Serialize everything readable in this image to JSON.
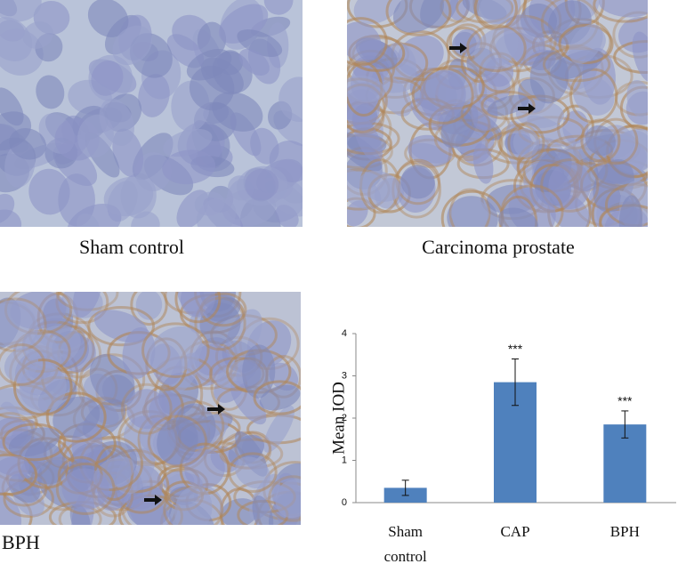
{
  "panels": [
    {
      "label": "Sham control"
    },
    {
      "label": "Carcinoma prostate"
    },
    {
      "label": "BPH"
    }
  ],
  "chart_data": {
    "type": "bar",
    "ylabel": "Mean IOD",
    "categories": [
      "Sham control",
      "CAP",
      "BPH"
    ],
    "values": [
      0.35,
      2.85,
      1.85
    ],
    "errors": [
      0.18,
      0.55,
      0.32
    ],
    "value_annotations": [
      null,
      "***",
      "***"
    ],
    "color": "#4f81bd",
    "ylim": [
      0,
      4
    ],
    "yticks": [
      0,
      1,
      2,
      3,
      4
    ],
    "grid": false
  }
}
